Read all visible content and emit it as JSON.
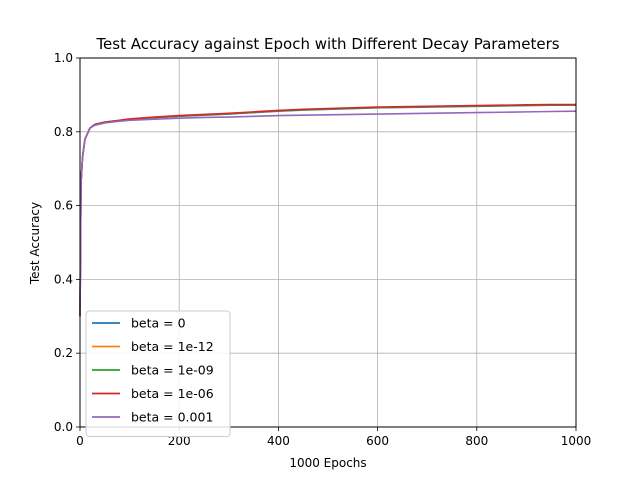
{
  "chart_data": {
    "type": "line",
    "title": "Test Accuracy against Epoch with Different Decay Parameters",
    "xlabel": "1000 Epochs",
    "ylabel": "Test Accuracy",
    "xlim": [
      0,
      1000
    ],
    "ylim": [
      0.0,
      1.0
    ],
    "xticks": [
      0,
      200,
      400,
      600,
      800,
      1000
    ],
    "yticks": [
      0.0,
      0.2,
      0.4,
      0.6,
      0.8,
      1.0
    ],
    "xtick_labels": [
      "0",
      "200",
      "400",
      "600",
      "800",
      "1000"
    ],
    "ytick_labels": [
      "0.0",
      "0.2",
      "0.4",
      "0.6",
      "0.8",
      "1.0"
    ],
    "grid": true,
    "legend_position": "lower-left",
    "x": [
      0,
      2,
      5,
      10,
      20,
      30,
      50,
      75,
      100,
      150,
      200,
      250,
      300,
      350,
      400,
      450,
      500,
      550,
      600,
      650,
      700,
      750,
      800,
      850,
      900,
      950,
      1000
    ],
    "series": [
      {
        "name": "beta = 0",
        "color": "#1f77b4",
        "values": [
          0.3,
          0.66,
          0.73,
          0.78,
          0.81,
          0.82,
          0.826,
          0.83,
          0.834,
          0.838,
          0.842,
          0.845,
          0.848,
          0.852,
          0.856,
          0.859,
          0.861,
          0.863,
          0.865,
          0.866,
          0.867,
          0.868,
          0.869,
          0.87,
          0.871,
          0.872,
          0.872
        ]
      },
      {
        "name": "beta = 1e-12",
        "color": "#ff7f0e",
        "values": [
          0.3,
          0.66,
          0.73,
          0.78,
          0.81,
          0.82,
          0.826,
          0.83,
          0.834,
          0.839,
          0.843,
          0.846,
          0.849,
          0.853,
          0.857,
          0.86,
          0.862,
          0.864,
          0.866,
          0.867,
          0.868,
          0.869,
          0.87,
          0.871,
          0.872,
          0.873,
          0.873
        ]
      },
      {
        "name": "beta = 1e-09",
        "color": "#2ca02c",
        "values": [
          0.3,
          0.66,
          0.73,
          0.78,
          0.81,
          0.82,
          0.826,
          0.83,
          0.834,
          0.839,
          0.843,
          0.846,
          0.849,
          0.853,
          0.857,
          0.86,
          0.862,
          0.864,
          0.866,
          0.867,
          0.868,
          0.869,
          0.87,
          0.871,
          0.872,
          0.873,
          0.873
        ]
      },
      {
        "name": "beta = 1e-06",
        "color": "#d62728",
        "values": [
          0.3,
          0.66,
          0.73,
          0.78,
          0.81,
          0.82,
          0.826,
          0.83,
          0.835,
          0.84,
          0.844,
          0.847,
          0.85,
          0.854,
          0.858,
          0.861,
          0.863,
          0.865,
          0.867,
          0.868,
          0.869,
          0.87,
          0.871,
          0.872,
          0.873,
          0.874,
          0.874
        ]
      },
      {
        "name": "beta = 0.001",
        "color": "#9467bd",
        "values": [
          0.3,
          0.66,
          0.73,
          0.78,
          0.81,
          0.818,
          0.824,
          0.828,
          0.831,
          0.834,
          0.837,
          0.839,
          0.84,
          0.842,
          0.844,
          0.845,
          0.846,
          0.847,
          0.848,
          0.849,
          0.85,
          0.851,
          0.852,
          0.853,
          0.854,
          0.855,
          0.856
        ]
      }
    ]
  }
}
